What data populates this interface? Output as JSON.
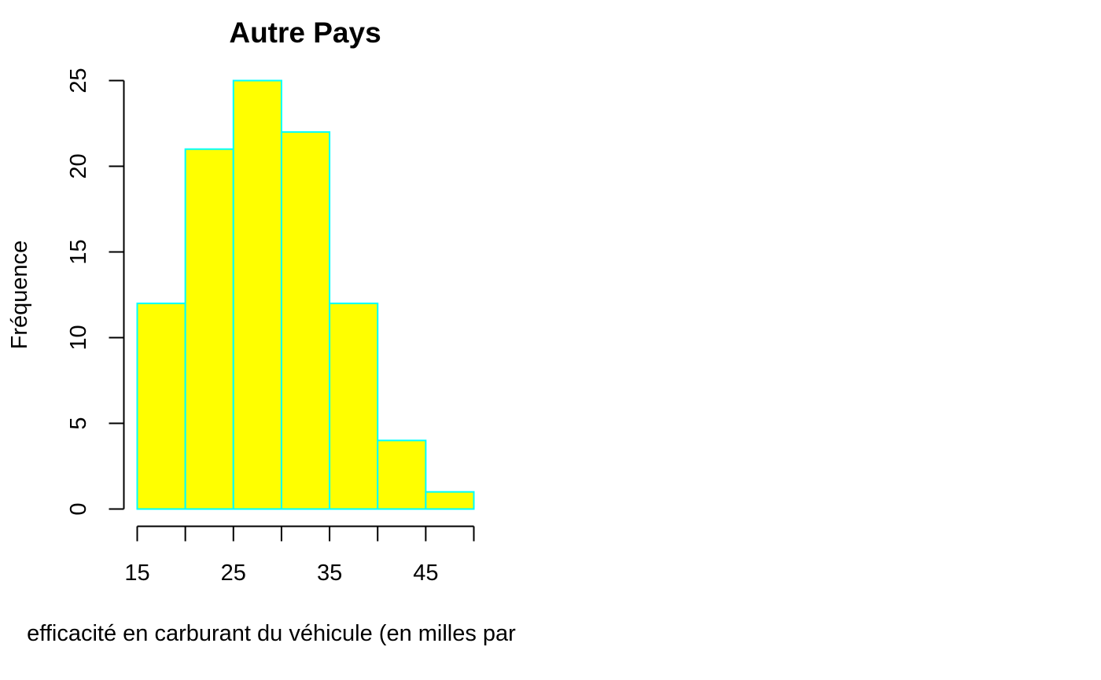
{
  "chart_data": {
    "type": "bar",
    "title": "Autre Pays",
    "xlabel": "efficacité en carburant du véhicule (en milles par",
    "ylabel": "Fréquence",
    "bins": [
      {
        "from": 15,
        "to": 20,
        "count": 12
      },
      {
        "from": 20,
        "to": 25,
        "count": 21
      },
      {
        "from": 25,
        "to": 30,
        "count": 25
      },
      {
        "from": 30,
        "to": 35,
        "count": 22
      },
      {
        "from": 35,
        "to": 40,
        "count": 12
      },
      {
        "from": 40,
        "to": 45,
        "count": 4
      },
      {
        "from": 45,
        "to": 50,
        "count": 1
      }
    ],
    "x_ticks": [
      15,
      20,
      25,
      30,
      35,
      40,
      45,
      50
    ],
    "x_tick_labels": [
      "15",
      "",
      "25",
      "",
      "35",
      "",
      "45",
      ""
    ],
    "y_ticks": [
      0,
      5,
      10,
      15,
      20,
      25
    ],
    "y_tick_labels": [
      "0",
      "5",
      "10",
      "15",
      "20",
      "25"
    ],
    "xlim": [
      15,
      50
    ],
    "ylim": [
      0,
      25
    ],
    "grid": false,
    "colors": {
      "fill": "#ffff00",
      "border": "#00ffff",
      "axis": "#000000"
    }
  }
}
